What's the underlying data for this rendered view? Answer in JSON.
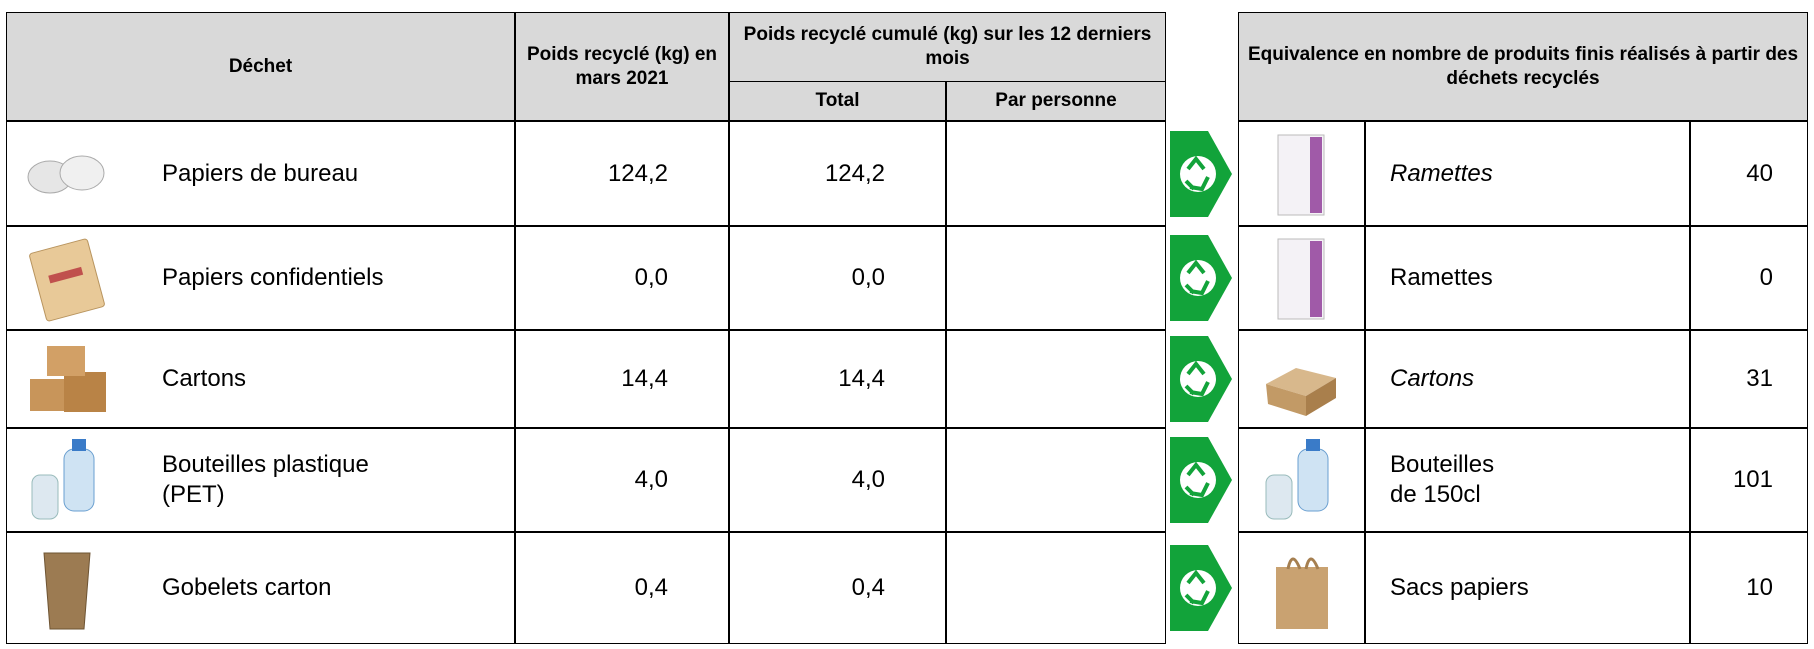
{
  "left_table": {
    "headers": {
      "waste": "Déchet",
      "monthly": "Poids recyclé (kg) en mars 2021",
      "cumulative": "Poids recyclé cumulé (kg) sur les 12 derniers mois",
      "total": "Total",
      "per_person": "Par personne"
    },
    "rows": [
      {
        "name": "Papiers de bureau",
        "monthly": "124,2",
        "total": "124,2"
      },
      {
        "name": "Papiers confidentiels",
        "monthly": "0,0",
        "total": "0,0"
      },
      {
        "name": "Cartons",
        "monthly": "14,4",
        "total": "14,4"
      },
      {
        "name": "Bouteilles plastique\n(PET)",
        "monthly": "4,0",
        "total": "4,0"
      },
      {
        "name": "Gobelets carton",
        "monthly": "0,4",
        "total": "0,4"
      }
    ]
  },
  "right_table": {
    "header": "Equivalence en nombre de produits finis réalisés à partir des déchets recyclés",
    "rows": [
      {
        "product": "Ramettes",
        "count": 40,
        "italic": true
      },
      {
        "product": "Ramettes",
        "count": 0,
        "italic": false
      },
      {
        "product": "Cartons",
        "count": 31,
        "italic": true
      },
      {
        "product": "Bouteilles\nde 150cl",
        "count": 101,
        "italic": false
      },
      {
        "product": "Sacs papiers",
        "count": 10,
        "italic": false
      }
    ]
  }
}
